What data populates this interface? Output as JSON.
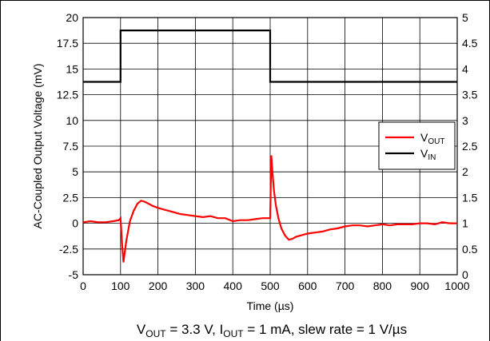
{
  "chart_data": {
    "type": "line",
    "xlabel": {
      "pre": "Time (",
      "mu": "µ",
      "post": "s)"
    },
    "ylabel": "AC-Coupled Output Voltage (mV)",
    "xlim": [
      0,
      1000
    ],
    "ylim": [
      -5,
      20
    ],
    "y2lim": [
      0,
      5
    ],
    "xticks": [
      "0",
      "100",
      "200",
      "300",
      "400",
      "500",
      "600",
      "700",
      "800",
      "900",
      "1000"
    ],
    "yticks": [
      "-5",
      "-2.5",
      "0",
      "2.5",
      "5",
      "7.5",
      "10",
      "12.5",
      "15",
      "17.5",
      "20"
    ],
    "y2ticks": [
      "0",
      "0.5",
      "1",
      "1.5",
      "2",
      "2.5",
      "3",
      "3.5",
      "4",
      "4.5",
      "5"
    ],
    "grid": true,
    "legend_position": "right",
    "series": [
      {
        "name": "VOUT",
        "label": {
          "main": "V",
          "sub": "OUT"
        },
        "color": "#ff0000",
        "axis": "left",
        "x": [
          0,
          20,
          40,
          60,
          80,
          95,
          100,
          104,
          108,
          115,
          125,
          135,
          145,
          155,
          165,
          175,
          185,
          200,
          220,
          240,
          260,
          280,
          300,
          320,
          340,
          360,
          380,
          400,
          420,
          440,
          460,
          480,
          495,
          500,
          503,
          506,
          510,
          515,
          522,
          530,
          540,
          550,
          560,
          570,
          580,
          600,
          620,
          640,
          660,
          680,
          700,
          720,
          740,
          760,
          780,
          800,
          820,
          840,
          860,
          880,
          900,
          920,
          940,
          960,
          980,
          1000
        ],
        "y": [
          0.1,
          0.2,
          0.1,
          0.1,
          0.2,
          0.3,
          0.5,
          -2.0,
          -3.8,
          -1.8,
          0.2,
          1.2,
          1.9,
          2.2,
          2.1,
          1.9,
          1.7,
          1.5,
          1.3,
          1.1,
          0.9,
          0.8,
          0.7,
          0.6,
          0.7,
          0.5,
          0.5,
          0.2,
          0.3,
          0.3,
          0.4,
          0.5,
          0.5,
          0.5,
          6.6,
          5.0,
          3.2,
          1.8,
          0.5,
          -0.5,
          -1.2,
          -1.6,
          -1.5,
          -1.3,
          -1.2,
          -1.0,
          -0.9,
          -0.8,
          -0.6,
          -0.5,
          -0.3,
          -0.2,
          -0.2,
          -0.3,
          -0.2,
          -0.1,
          -0.2,
          -0.1,
          -0.1,
          -0.1,
          0.0,
          0.0,
          -0.1,
          0.1,
          0.0,
          0.0
        ]
      },
      {
        "name": "VIN",
        "label": {
          "main": "V",
          "sub": "IN"
        },
        "color": "#000000",
        "axis": "right",
        "x": [
          0,
          100,
          100,
          500,
          500,
          1000
        ],
        "y": [
          3.75,
          3.75,
          4.75,
          4.75,
          3.75,
          3.75
        ]
      }
    ],
    "caption": {
      "v": "V",
      "vsub": "OUT",
      "mid": " = 3.3 V, I",
      "isub": "OUT",
      "rest": " = 1 mA, slew rate = 1 V/µs"
    }
  }
}
